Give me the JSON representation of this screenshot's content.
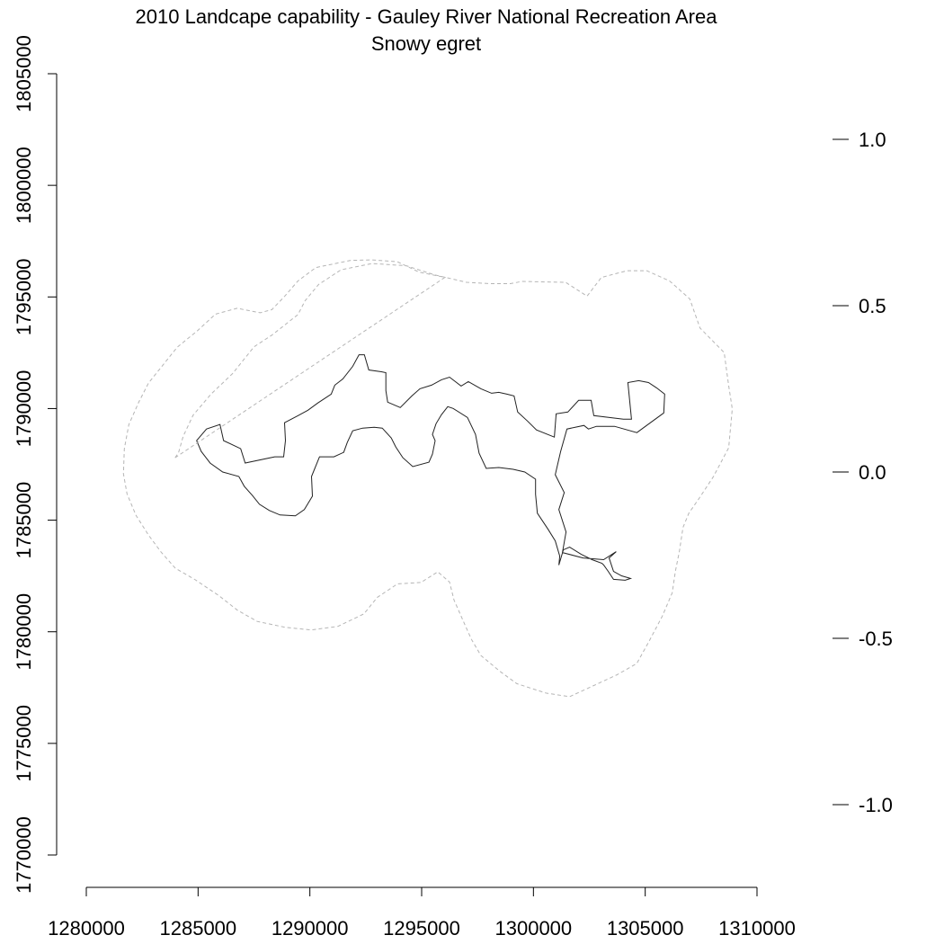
{
  "chart_data": {
    "type": "map",
    "title": "2010 Landcape capability - Gauley River National Recreation Area",
    "subtitle": "Snowy egret",
    "x_axis": {
      "ticks": [
        1280000,
        1285000,
        1290000,
        1295000,
        1300000,
        1305000,
        1310000
      ],
      "tick_labels": [
        "1280000",
        "1285000",
        "1290000",
        "1295000",
        "1300000",
        "1305000",
        "1310000"
      ],
      "range": [
        1280000,
        1310000
      ]
    },
    "y_axis": {
      "ticks": [
        1770000,
        1775000,
        1780000,
        1785000,
        1790000,
        1795000,
        1800000,
        1805000
      ],
      "tick_labels": [
        "1770000",
        "1775000",
        "1780000",
        "1785000",
        "1790000",
        "1795000",
        "1800000",
        "1805000"
      ],
      "range": [
        1770000,
        1805000
      ]
    },
    "legend": {
      "placement": "right",
      "ticks": [
        1.0,
        0.5,
        0.0,
        -0.5,
        -1.0
      ],
      "tick_labels": [
        "1.0",
        "0.5",
        "0.0",
        "-0.5",
        "-1.0"
      ]
    },
    "layers": [
      {
        "type": "polygon",
        "style": "solid",
        "color": "#222222",
        "points": [
          [
            1284936,
            1788562
          ],
          [
            1285378,
            1789083
          ],
          [
            1285980,
            1789283
          ],
          [
            1286141,
            1788562
          ],
          [
            1286903,
            1788201
          ],
          [
            1287104,
            1787559
          ],
          [
            1288427,
            1787840
          ],
          [
            1288828,
            1787840
          ],
          [
            1288908,
            1788562
          ],
          [
            1288868,
            1789363
          ],
          [
            1289470,
            1789684
          ],
          [
            1289911,
            1789924
          ],
          [
            1290352,
            1790246
          ],
          [
            1290953,
            1790646
          ],
          [
            1291114,
            1791047
          ],
          [
            1291475,
            1791327
          ],
          [
            1291916,
            1791889
          ],
          [
            1292197,
            1792410
          ],
          [
            1292437,
            1792410
          ],
          [
            1292637,
            1791728
          ],
          [
            1293199,
            1791648
          ],
          [
            1293399,
            1791609
          ],
          [
            1293399,
            1790807
          ],
          [
            1293480,
            1790286
          ],
          [
            1294041,
            1790046
          ],
          [
            1294562,
            1790567
          ],
          [
            1294923,
            1790887
          ],
          [
            1295444,
            1791047
          ],
          [
            1295885,
            1791288
          ],
          [
            1296246,
            1791408
          ],
          [
            1296767,
            1791007
          ],
          [
            1297088,
            1791208
          ],
          [
            1297649,
            1790887
          ],
          [
            1298130,
            1790687
          ],
          [
            1298451,
            1790727
          ],
          [
            1298812,
            1790646
          ],
          [
            1299133,
            1790567
          ],
          [
            1299293,
            1789844
          ],
          [
            1299734,
            1789443
          ],
          [
            1300135,
            1789043
          ],
          [
            1300937,
            1788722
          ],
          [
            1301017,
            1789764
          ],
          [
            1301539,
            1789844
          ],
          [
            1302020,
            1790366
          ],
          [
            1302581,
            1790366
          ],
          [
            1302701,
            1789684
          ],
          [
            1304024,
            1789523
          ],
          [
            1304385,
            1789523
          ],
          [
            1304225,
            1791167
          ],
          [
            1304706,
            1791248
          ],
          [
            1305147,
            1791167
          ],
          [
            1305508,
            1790927
          ],
          [
            1305869,
            1790646
          ],
          [
            1305829,
            1789804
          ],
          [
            1305067,
            1789242
          ],
          [
            1304626,
            1788922
          ],
          [
            1303624,
            1789203
          ],
          [
            1302822,
            1789203
          ],
          [
            1302461,
            1789083
          ],
          [
            1302260,
            1789243
          ],
          [
            1301499,
            1789083
          ],
          [
            1301218,
            1788080
          ],
          [
            1300977,
            1787038
          ],
          [
            1301378,
            1786236
          ],
          [
            1301138,
            1785474
          ],
          [
            1301458,
            1784472
          ],
          [
            1301298,
            1783550
          ],
          [
            1302220,
            1783309
          ],
          [
            1303141,
            1783229
          ],
          [
            1303704,
            1783590
          ],
          [
            1303383,
            1783309
          ],
          [
            1303583,
            1782708
          ],
          [
            1303944,
            1782507
          ],
          [
            1304345,
            1782387
          ],
          [
            1304105,
            1782307
          ],
          [
            1303583,
            1782347
          ],
          [
            1303343,
            1782708
          ],
          [
            1303142,
            1782989
          ],
          [
            1303062,
            1783069
          ],
          [
            1302621,
            1783229
          ],
          [
            1302140,
            1783469
          ],
          [
            1301619,
            1783790
          ],
          [
            1301338,
            1783670
          ],
          [
            1301138,
            1782989
          ],
          [
            1301178,
            1783389
          ],
          [
            1300977,
            1784071
          ],
          [
            1300656,
            1784592
          ],
          [
            1300175,
            1785314
          ],
          [
            1300095,
            1786156
          ],
          [
            1300095,
            1786837
          ],
          [
            1299614,
            1787158
          ],
          [
            1299093,
            1787278
          ],
          [
            1298451,
            1787358
          ],
          [
            1297889,
            1787318
          ],
          [
            1297569,
            1788000
          ],
          [
            1297408,
            1788842
          ],
          [
            1297048,
            1789603
          ],
          [
            1296406,
            1790005
          ],
          [
            1296166,
            1790085
          ],
          [
            1295885,
            1789724
          ],
          [
            1295645,
            1789322
          ],
          [
            1295484,
            1788842
          ],
          [
            1295604,
            1788561
          ],
          [
            1295484,
            1787960
          ],
          [
            1295324,
            1787598
          ],
          [
            1294602,
            1787398
          ],
          [
            1294161,
            1787799
          ],
          [
            1293840,
            1788280
          ],
          [
            1293640,
            1788682
          ],
          [
            1293239,
            1789122
          ],
          [
            1292878,
            1789163
          ],
          [
            1292357,
            1789122
          ],
          [
            1291916,
            1789003
          ],
          [
            1291675,
            1788481
          ],
          [
            1291515,
            1788040
          ],
          [
            1291074,
            1787839
          ],
          [
            1290433,
            1787839
          ],
          [
            1290072,
            1786958
          ],
          [
            1290112,
            1786075
          ],
          [
            1289751,
            1785474
          ],
          [
            1289350,
            1785193
          ],
          [
            1288668,
            1785233
          ],
          [
            1288187,
            1785434
          ],
          [
            1287746,
            1785713
          ],
          [
            1287425,
            1786115
          ],
          [
            1287064,
            1786516
          ],
          [
            1286823,
            1786956
          ],
          [
            1286102,
            1787158
          ],
          [
            1285540,
            1787558
          ],
          [
            1285139,
            1788080
          ]
        ]
      },
      {
        "type": "polygon",
        "style": "dashed",
        "color": "#b5b5b5",
        "points": [
          [
            1283974,
            1787798
          ],
          [
            1284131,
            1788040
          ],
          [
            1284335,
            1788762
          ],
          [
            1284776,
            1789704
          ],
          [
            1285578,
            1790645
          ],
          [
            1286541,
            1791567
          ],
          [
            1287503,
            1792769
          ],
          [
            1288303,
            1793290
          ],
          [
            1289467,
            1794212
          ],
          [
            1289787,
            1794833
          ],
          [
            1290388,
            1795555
          ],
          [
            1291391,
            1796216
          ],
          [
            1292794,
            1796497
          ],
          [
            1294318,
            1796396
          ],
          [
            1295561,
            1795996
          ],
          [
            1297004,
            1795655
          ],
          [
            1298048,
            1795595
          ],
          [
            1298970,
            1795595
          ],
          [
            1299491,
            1795695
          ],
          [
            1300334,
            1795675
          ],
          [
            1301437,
            1795655
          ],
          [
            1302399,
            1795034
          ],
          [
            1303040,
            1795875
          ],
          [
            1304183,
            1796176
          ],
          [
            1305066,
            1796176
          ],
          [
            1306088,
            1795715
          ],
          [
            1306990,
            1794913
          ],
          [
            1307451,
            1793610
          ],
          [
            1308533,
            1792507
          ],
          [
            1308734,
            1791026
          ],
          [
            1308895,
            1789984
          ],
          [
            1308734,
            1788241
          ],
          [
            1308052,
            1786956
          ],
          [
            1307451,
            1786035
          ],
          [
            1306950,
            1785313
          ],
          [
            1306690,
            1784671
          ],
          [
            1306529,
            1783609
          ],
          [
            1306349,
            1782707
          ],
          [
            1306208,
            1781745
          ],
          [
            1305767,
            1780702
          ],
          [
            1305166,
            1779560
          ],
          [
            1304625,
            1778577
          ],
          [
            1303743,
            1778076
          ],
          [
            1302700,
            1777594
          ],
          [
            1301618,
            1777093
          ],
          [
            1300556,
            1777254
          ],
          [
            1299253,
            1777675
          ],
          [
            1298491,
            1778237
          ],
          [
            1297650,
            1778938
          ],
          [
            1297228,
            1779660
          ],
          [
            1296907,
            1780381
          ],
          [
            1296447,
            1781424
          ],
          [
            1296245,
            1782226
          ],
          [
            1295725,
            1782687
          ],
          [
            1294964,
            1782206
          ],
          [
            1293921,
            1782146
          ],
          [
            1293019,
            1781545
          ],
          [
            1292417,
            1780803
          ],
          [
            1291255,
            1780242
          ],
          [
            1290052,
            1780081
          ],
          [
            1288889,
            1780202
          ],
          [
            1287646,
            1780463
          ],
          [
            1286764,
            1780964
          ],
          [
            1285923,
            1781625
          ],
          [
            1284850,
            1782346
          ],
          [
            1283986,
            1782846
          ],
          [
            1283345,
            1783568
          ],
          [
            1282784,
            1784329
          ],
          [
            1282223,
            1785212
          ],
          [
            1281821,
            1786173
          ],
          [
            1281662,
            1787076
          ],
          [
            1281701,
            1788199
          ],
          [
            1281901,
            1789282
          ],
          [
            1282343,
            1790284
          ],
          [
            1282784,
            1791146
          ],
          [
            1283425,
            1791947
          ],
          [
            1284066,
            1792749
          ],
          [
            1284950,
            1793470
          ],
          [
            1285778,
            1794232
          ],
          [
            1286740,
            1794493
          ],
          [
            1287783,
            1794292
          ],
          [
            1288302,
            1794433
          ],
          [
            1288845,
            1794994
          ],
          [
            1289466,
            1795715
          ],
          [
            1290267,
            1796316
          ],
          [
            1291831,
            1796637
          ],
          [
            1292793,
            1796657
          ],
          [
            1293915,
            1796577
          ],
          [
            1294877,
            1796116
          ],
          [
            1296040,
            1795876
          ]
        ]
      }
    ]
  }
}
